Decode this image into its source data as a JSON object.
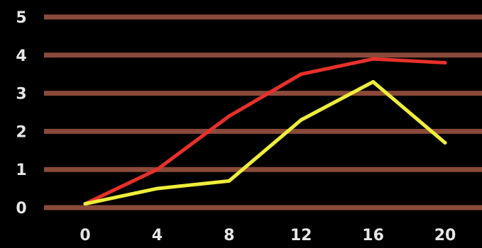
{
  "chart_data": {
    "type": "line",
    "title": "",
    "xlabel": "",
    "ylabel": "",
    "x": [
      0,
      4,
      8,
      12,
      16,
      20
    ],
    "x_tick_labels": [
      "0",
      "4",
      "8",
      "12",
      "16",
      "20"
    ],
    "y_tick_labels": [
      "0",
      "1",
      "2",
      "3",
      "4",
      "5"
    ],
    "xlim": [
      0,
      20
    ],
    "ylim": [
      0,
      5
    ],
    "grid": "horizontal",
    "legend": "none",
    "series": [
      {
        "color": "#e8302a",
        "values": [
          0.1,
          1.0,
          2.4,
          3.5,
          3.9,
          3.8
        ]
      },
      {
        "color": "#eeee3a",
        "values": [
          0.1,
          0.5,
          0.7,
          2.3,
          3.3,
          1.7
        ]
      }
    ]
  },
  "style": {
    "background": "#000000",
    "gridline_color": "#8a4a3a",
    "tick_label_color": "#e6e6e6"
  }
}
